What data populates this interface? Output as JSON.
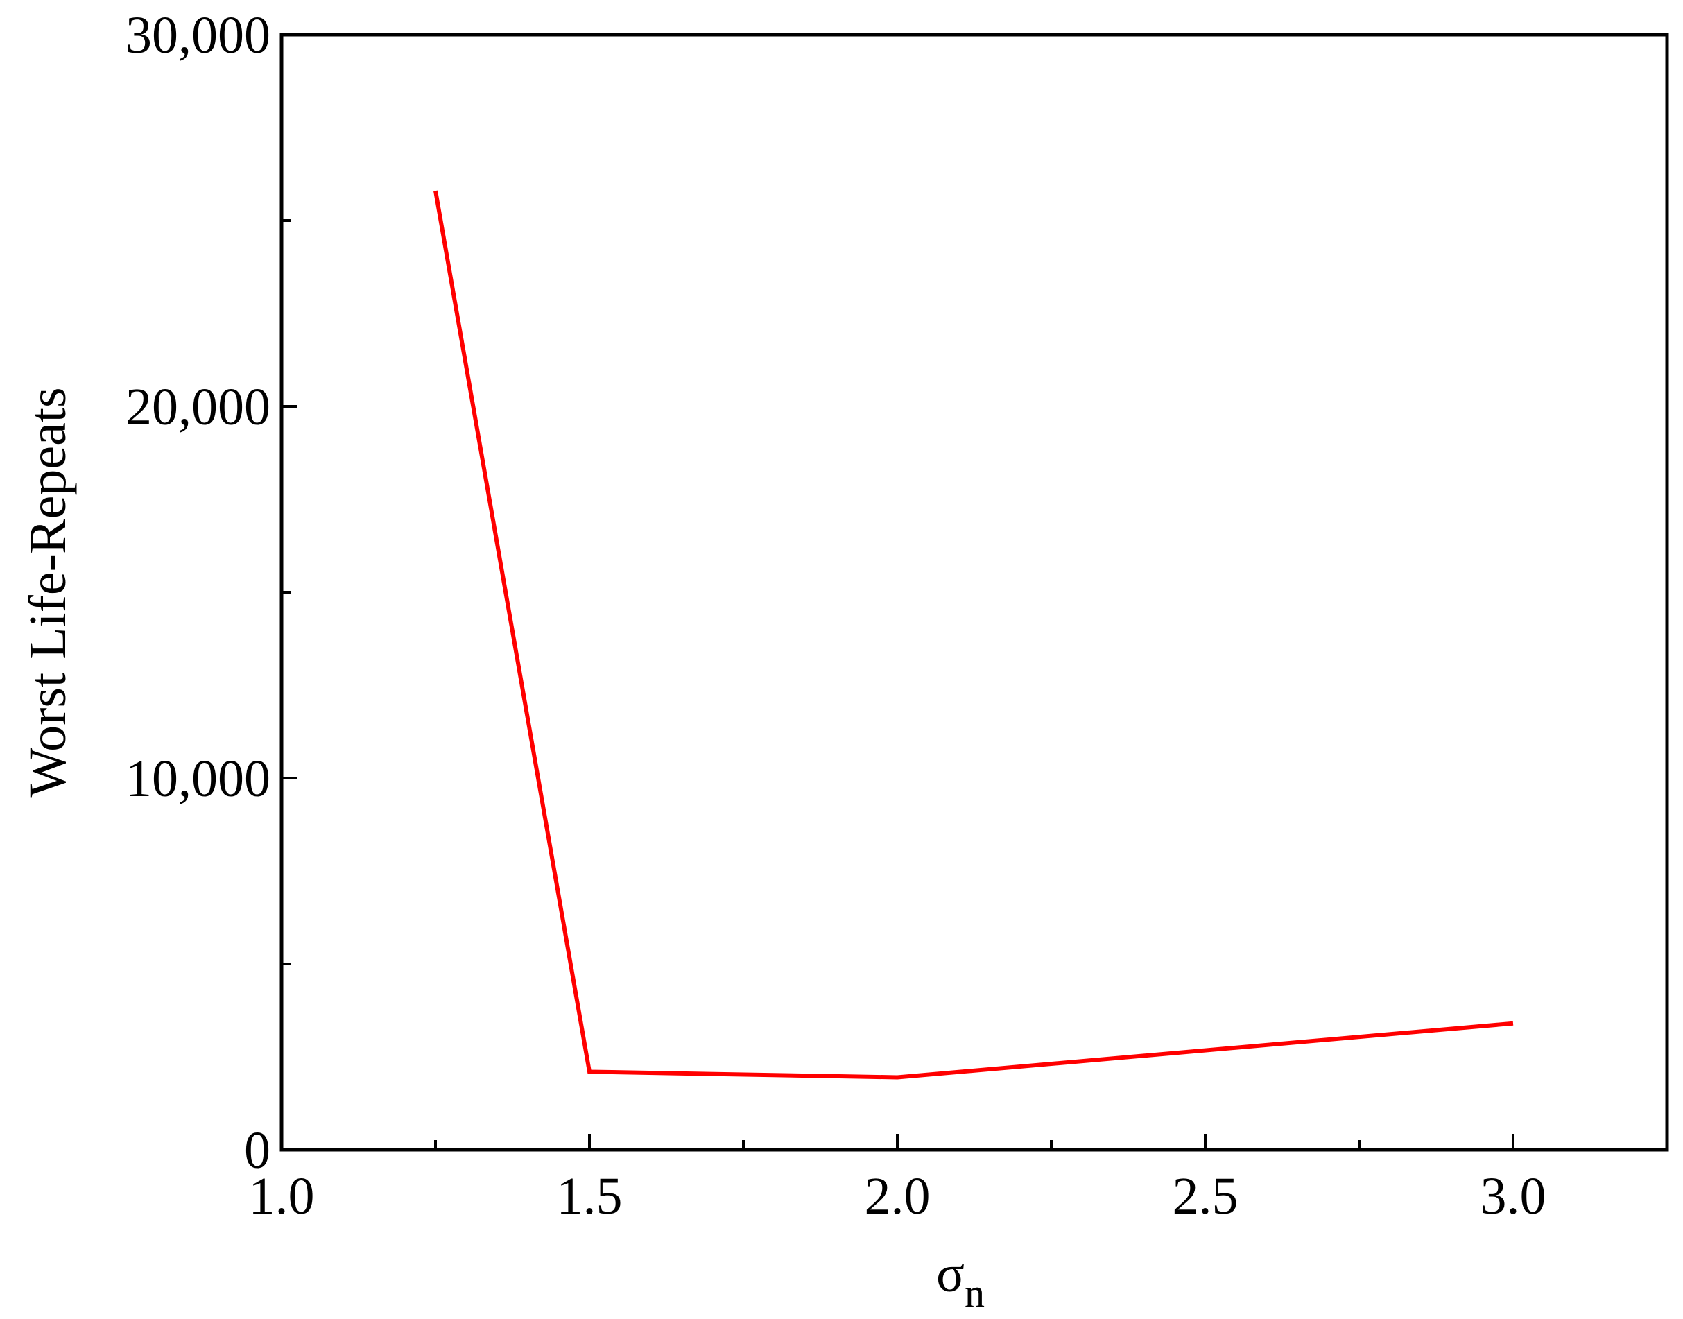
{
  "chart_data": {
    "type": "line",
    "xlabel": {
      "text": "σ",
      "subscript": "n"
    },
    "ylabel": "Worst Life-Repeats",
    "x": [
      1.25,
      1.5,
      2.0,
      3.0
    ],
    "series": [
      {
        "name": "Worst Life-Repeats",
        "color": "#ff0000",
        "values": [
          25800,
          2100,
          1950,
          3400
        ]
      }
    ],
    "xlim": [
      1.0,
      3.25
    ],
    "xticks": [
      {
        "value": 1.0,
        "label": "1.0"
      },
      1.5,
      {
        "value": 2.0,
        "label": "2.0"
      },
      2.5,
      {
        "value": 3.0,
        "label": "3.0"
      }
    ],
    "xminorticks": [
      1.25,
      1.75,
      2.25,
      2.75
    ],
    "ylim": [
      0,
      30000
    ],
    "yticks": [
      0,
      {
        "value": 10000,
        "label": "10,000"
      },
      {
        "value": 20000,
        "label": "20,000"
      },
      {
        "value": 30000,
        "label": "30,000"
      }
    ],
    "yminorticks": [
      5000,
      15000,
      25000
    ],
    "grid": false
  }
}
